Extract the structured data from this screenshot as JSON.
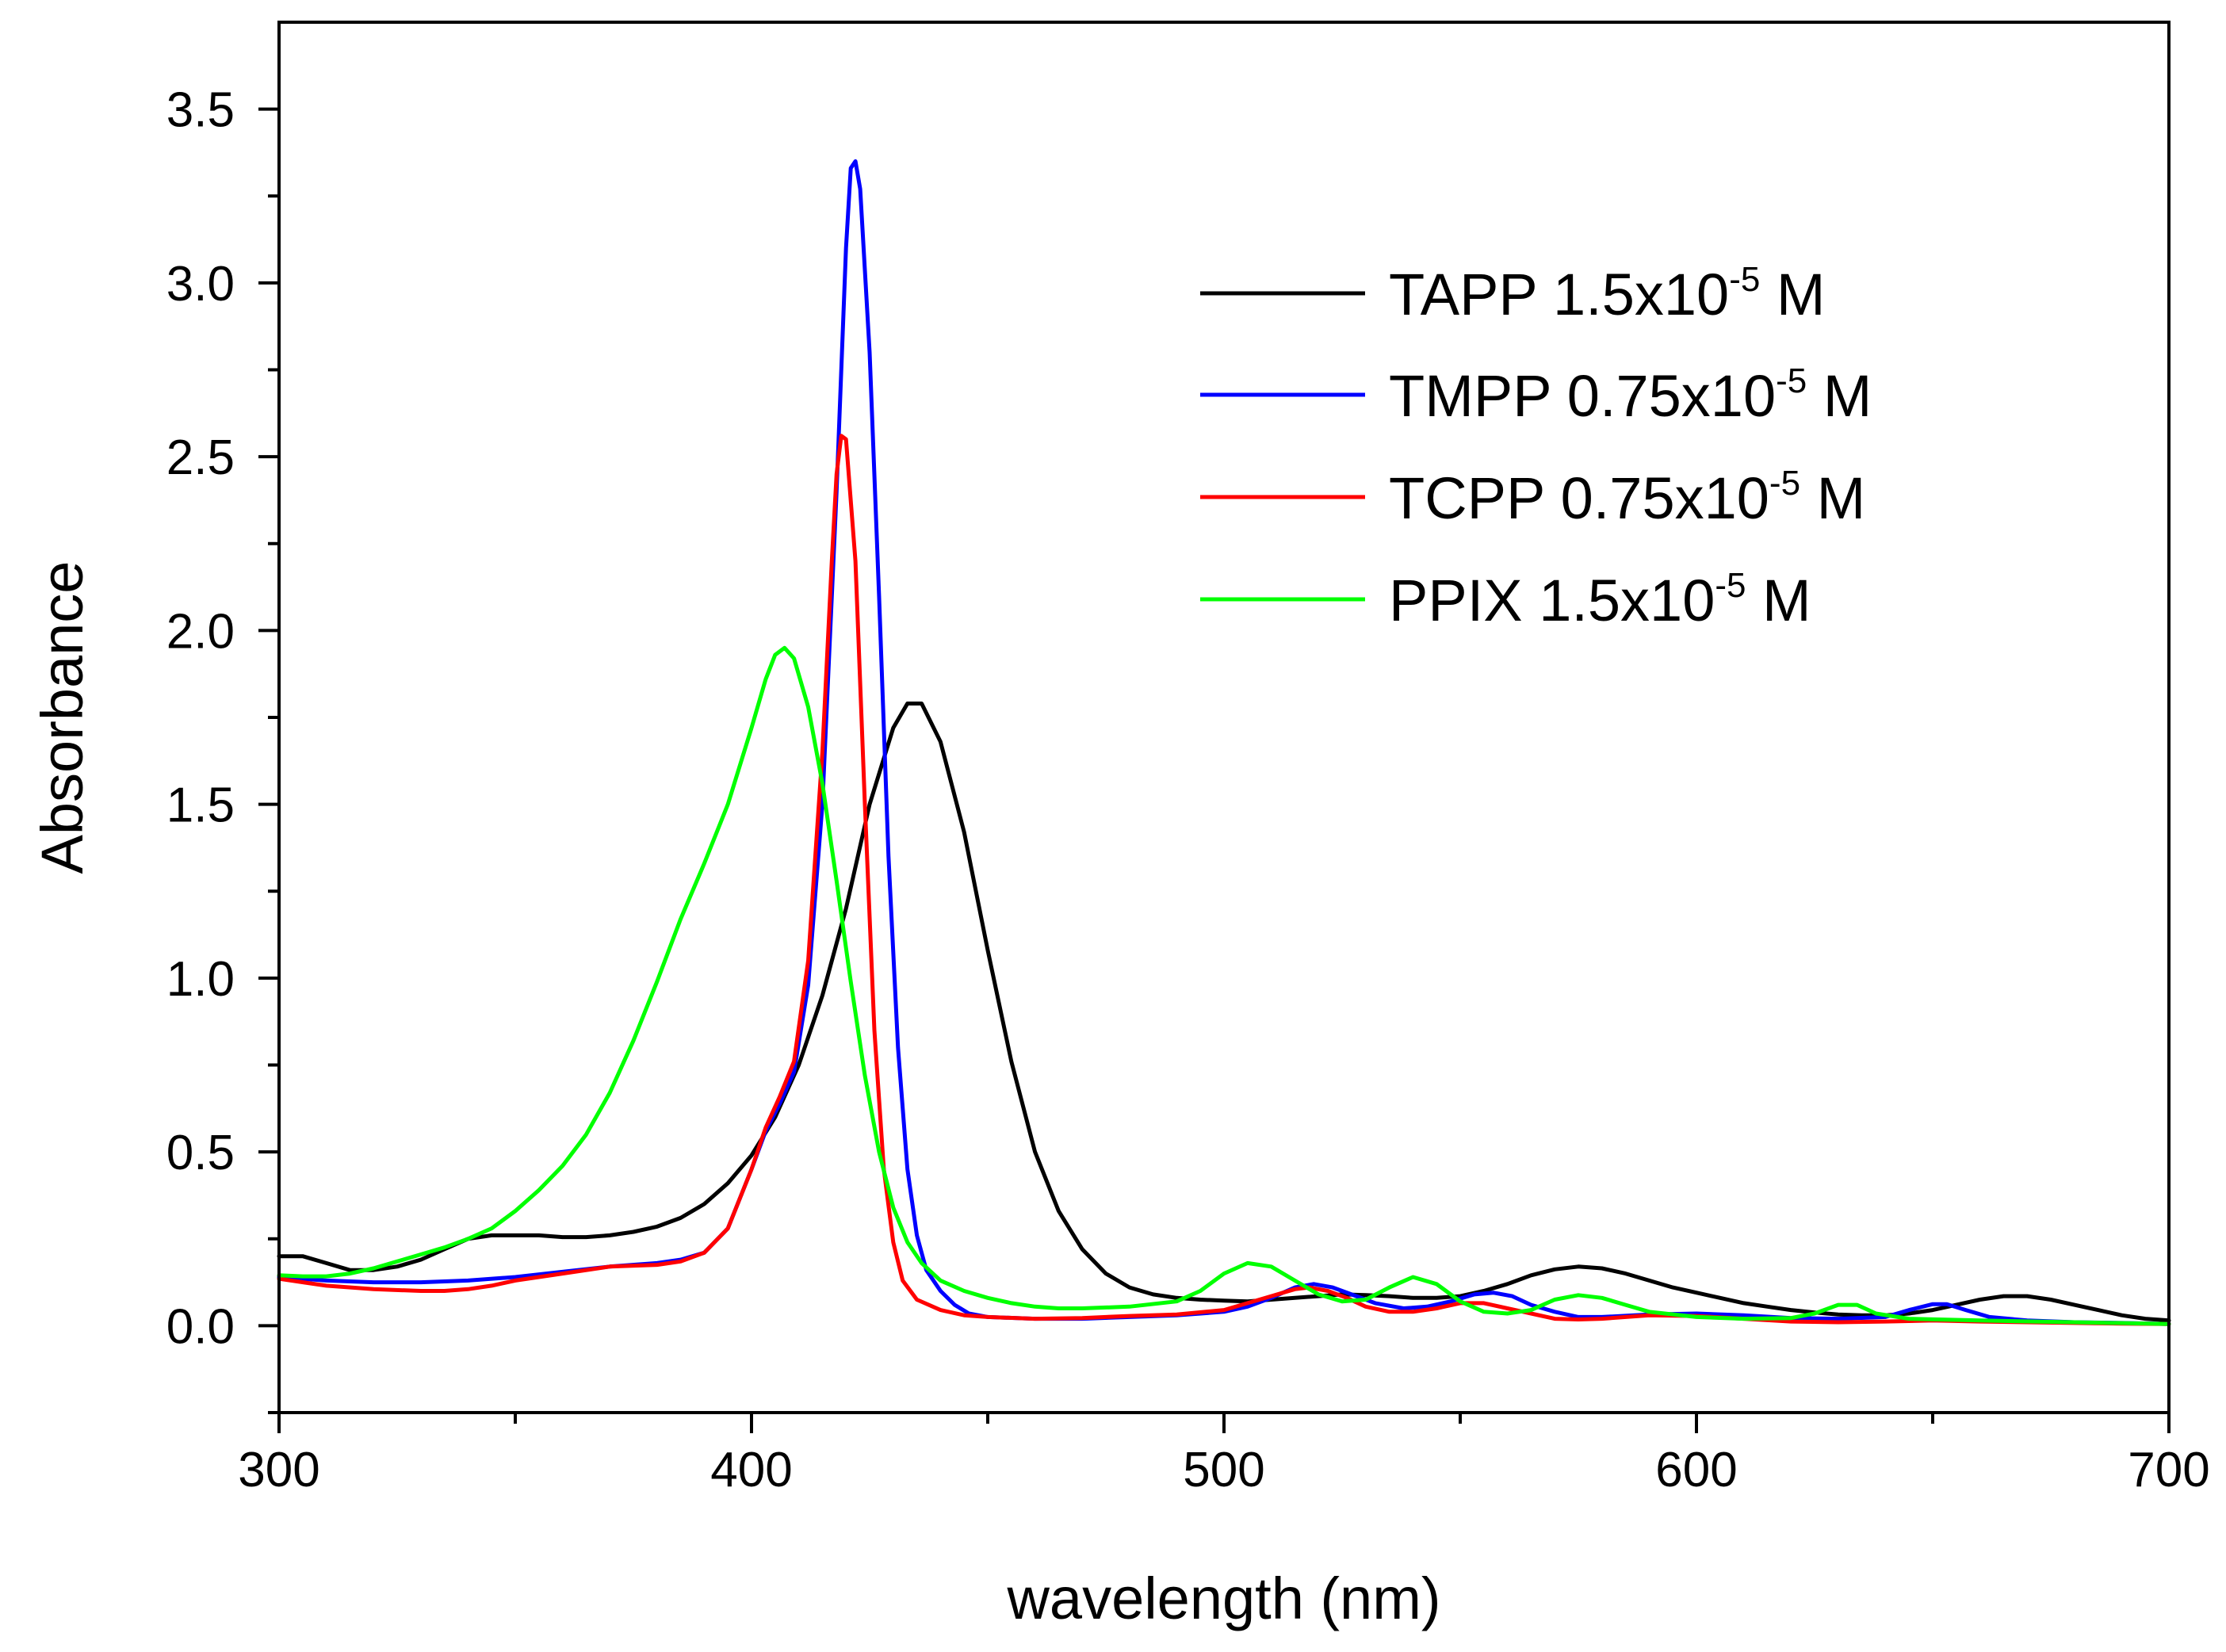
{
  "chart_data": {
    "type": "line",
    "title": "",
    "xlabel": "wavelength (nm)",
    "ylabel": "Absorbance",
    "xlim": [
      300,
      700
    ],
    "ylim": [
      -0.25,
      3.75
    ],
    "grid": false,
    "legend_position": "top-right",
    "x_ticks": [
      300,
      400,
      500,
      600,
      700
    ],
    "x_tick_labels": [
      "300",
      "400",
      "500",
      "600",
      "700"
    ],
    "y_ticks": [
      0.0,
      0.5,
      1.0,
      1.5,
      2.0,
      2.5,
      3.0,
      3.5
    ],
    "y_tick_labels": [
      "0.0",
      "0.5",
      "1.0",
      "1.5",
      "2.0",
      "2.5",
      "3.0",
      "3.5"
    ],
    "series": [
      {
        "name": "TAPP",
        "legend": {
          "pre": "TAPP 1.5x10",
          "sup": "-5",
          "post": " M"
        },
        "color": "#000000",
        "points": [
          [
            300,
            0.2
          ],
          [
            305,
            0.2
          ],
          [
            310,
            0.18
          ],
          [
            315,
            0.16
          ],
          [
            320,
            0.16
          ],
          [
            325,
            0.17
          ],
          [
            330,
            0.19
          ],
          [
            335,
            0.22
          ],
          [
            340,
            0.25
          ],
          [
            345,
            0.26
          ],
          [
            350,
            0.26
          ],
          [
            355,
            0.26
          ],
          [
            360,
            0.255
          ],
          [
            365,
            0.255
          ],
          [
            370,
            0.26
          ],
          [
            375,
            0.27
          ],
          [
            380,
            0.285
          ],
          [
            385,
            0.31
          ],
          [
            390,
            0.35
          ],
          [
            395,
            0.41
          ],
          [
            400,
            0.49
          ],
          [
            405,
            0.6
          ],
          [
            410,
            0.75
          ],
          [
            415,
            0.95
          ],
          [
            420,
            1.2
          ],
          [
            425,
            1.5
          ],
          [
            430,
            1.72
          ],
          [
            433,
            1.79
          ],
          [
            436,
            1.79
          ],
          [
            440,
            1.68
          ],
          [
            445,
            1.42
          ],
          [
            450,
            1.08
          ],
          [
            455,
            0.76
          ],
          [
            460,
            0.5
          ],
          [
            465,
            0.33
          ],
          [
            470,
            0.22
          ],
          [
            475,
            0.15
          ],
          [
            480,
            0.11
          ],
          [
            485,
            0.09
          ],
          [
            490,
            0.08
          ],
          [
            495,
            0.075
          ],
          [
            500,
            0.072
          ],
          [
            505,
            0.07
          ],
          [
            510,
            0.075
          ],
          [
            515,
            0.08
          ],
          [
            520,
            0.085
          ],
          [
            525,
            0.09
          ],
          [
            530,
            0.088
          ],
          [
            535,
            0.085
          ],
          [
            540,
            0.08
          ],
          [
            545,
            0.08
          ],
          [
            550,
            0.085
          ],
          [
            555,
            0.1
          ],
          [
            560,
            0.12
          ],
          [
            565,
            0.145
          ],
          [
            570,
            0.162
          ],
          [
            575,
            0.17
          ],
          [
            580,
            0.165
          ],
          [
            585,
            0.15
          ],
          [
            590,
            0.13
          ],
          [
            595,
            0.11
          ],
          [
            600,
            0.095
          ],
          [
            605,
            0.08
          ],
          [
            610,
            0.065
          ],
          [
            615,
            0.055
          ],
          [
            620,
            0.045
          ],
          [
            625,
            0.038
          ],
          [
            630,
            0.032
          ],
          [
            635,
            0.03
          ],
          [
            640,
            0.03
          ],
          [
            645,
            0.035
          ],
          [
            650,
            0.045
          ],
          [
            655,
            0.06
          ],
          [
            660,
            0.075
          ],
          [
            665,
            0.085
          ],
          [
            670,
            0.085
          ],
          [
            675,
            0.075
          ],
          [
            680,
            0.06
          ],
          [
            685,
            0.045
          ],
          [
            690,
            0.03
          ],
          [
            695,
            0.02
          ],
          [
            700,
            0.015
          ]
        ]
      },
      {
        "name": "TMPP",
        "legend": {
          "pre": "TMPP 0.75x10",
          "sup": "-5",
          "post": " M"
        },
        "color": "#0000ff",
        "points": [
          [
            300,
            0.14
          ],
          [
            310,
            0.13
          ],
          [
            320,
            0.125
          ],
          [
            330,
            0.125
          ],
          [
            340,
            0.13
          ],
          [
            350,
            0.14
          ],
          [
            360,
            0.155
          ],
          [
            370,
            0.17
          ],
          [
            380,
            0.18
          ],
          [
            385,
            0.19
          ],
          [
            390,
            0.21
          ],
          [
            395,
            0.28
          ],
          [
            400,
            0.45
          ],
          [
            403,
            0.56
          ],
          [
            406,
            0.64
          ],
          [
            409,
            0.73
          ],
          [
            412,
            0.98
          ],
          [
            415,
            1.5
          ],
          [
            418,
            2.4
          ],
          [
            420,
            3.1
          ],
          [
            421,
            3.33
          ],
          [
            422,
            3.35
          ],
          [
            423,
            3.27
          ],
          [
            425,
            2.8
          ],
          [
            427,
            2.1
          ],
          [
            429,
            1.35
          ],
          [
            431,
            0.8
          ],
          [
            433,
            0.45
          ],
          [
            435,
            0.26
          ],
          [
            437,
            0.16
          ],
          [
            440,
            0.1
          ],
          [
            443,
            0.06
          ],
          [
            446,
            0.035
          ],
          [
            450,
            0.025
          ],
          [
            460,
            0.02
          ],
          [
            470,
            0.02
          ],
          [
            480,
            0.025
          ],
          [
            490,
            0.03
          ],
          [
            500,
            0.04
          ],
          [
            505,
            0.055
          ],
          [
            510,
            0.08
          ],
          [
            515,
            0.11
          ],
          [
            519,
            0.12
          ],
          [
            523,
            0.11
          ],
          [
            527,
            0.09
          ],
          [
            532,
            0.065
          ],
          [
            538,
            0.05
          ],
          [
            543,
            0.055
          ],
          [
            548,
            0.07
          ],
          [
            553,
            0.09
          ],
          [
            557,
            0.095
          ],
          [
            561,
            0.085
          ],
          [
            565,
            0.06
          ],
          [
            570,
            0.04
          ],
          [
            575,
            0.025
          ],
          [
            580,
            0.025
          ],
          [
            590,
            0.032
          ],
          [
            600,
            0.035
          ],
          [
            610,
            0.03
          ],
          [
            620,
            0.022
          ],
          [
            630,
            0.02
          ],
          [
            640,
            0.025
          ],
          [
            645,
            0.045
          ],
          [
            650,
            0.062
          ],
          [
            653,
            0.062
          ],
          [
            657,
            0.045
          ],
          [
            662,
            0.025
          ],
          [
            670,
            0.015
          ],
          [
            680,
            0.01
          ],
          [
            690,
            0.008
          ],
          [
            700,
            0.005
          ]
        ]
      },
      {
        "name": "TCPP",
        "legend": {
          "pre": "TCPP 0.75x10",
          "sup": "-5",
          "post": " M"
        },
        "color": "#ff0000",
        "points": [
          [
            300,
            0.135
          ],
          [
            310,
            0.115
          ],
          [
            320,
            0.105
          ],
          [
            330,
            0.1
          ],
          [
            335,
            0.1
          ],
          [
            340,
            0.105
          ],
          [
            345,
            0.115
          ],
          [
            350,
            0.13
          ],
          [
            360,
            0.15
          ],
          [
            370,
            0.17
          ],
          [
            380,
            0.175
          ],
          [
            385,
            0.185
          ],
          [
            390,
            0.21
          ],
          [
            395,
            0.28
          ],
          [
            400,
            0.45
          ],
          [
            403,
            0.57
          ],
          [
            406,
            0.66
          ],
          [
            409,
            0.76
          ],
          [
            412,
            1.05
          ],
          [
            415,
            1.65
          ],
          [
            417,
            2.2
          ],
          [
            418,
            2.45
          ],
          [
            419,
            2.56
          ],
          [
            420,
            2.55
          ],
          [
            422,
            2.2
          ],
          [
            424,
            1.5
          ],
          [
            426,
            0.85
          ],
          [
            428,
            0.45
          ],
          [
            430,
            0.24
          ],
          [
            432,
            0.13
          ],
          [
            435,
            0.075
          ],
          [
            440,
            0.045
          ],
          [
            445,
            0.03
          ],
          [
            450,
            0.025
          ],
          [
            460,
            0.02
          ],
          [
            470,
            0.022
          ],
          [
            480,
            0.028
          ],
          [
            490,
            0.032
          ],
          [
            500,
            0.045
          ],
          [
            505,
            0.065
          ],
          [
            510,
            0.085
          ],
          [
            515,
            0.105
          ],
          [
            518,
            0.11
          ],
          [
            522,
            0.1
          ],
          [
            526,
            0.08
          ],
          [
            530,
            0.055
          ],
          [
            535,
            0.04
          ],
          [
            540,
            0.04
          ],
          [
            545,
            0.05
          ],
          [
            550,
            0.065
          ],
          [
            555,
            0.065
          ],
          [
            560,
            0.05
          ],
          [
            565,
            0.035
          ],
          [
            570,
            0.02
          ],
          [
            575,
            0.018
          ],
          [
            580,
            0.02
          ],
          [
            590,
            0.03
          ],
          [
            600,
            0.028
          ],
          [
            610,
            0.02
          ],
          [
            620,
            0.012
          ],
          [
            630,
            0.01
          ],
          [
            640,
            0.012
          ],
          [
            650,
            0.015
          ],
          [
            660,
            0.012
          ],
          [
            670,
            0.01
          ],
          [
            680,
            0.008
          ],
          [
            690,
            0.006
          ],
          [
            700,
            0.005
          ]
        ]
      },
      {
        "name": "PPIX",
        "legend": {
          "pre": "PPIX  1.5x10",
          "sup": "-5",
          "post": " M"
        },
        "color": "#00ff00",
        "points": [
          [
            300,
            0.145
          ],
          [
            305,
            0.142
          ],
          [
            310,
            0.142
          ],
          [
            315,
            0.15
          ],
          [
            320,
            0.165
          ],
          [
            325,
            0.185
          ],
          [
            330,
            0.205
          ],
          [
            335,
            0.225
          ],
          [
            340,
            0.25
          ],
          [
            345,
            0.28
          ],
          [
            350,
            0.33
          ],
          [
            355,
            0.39
          ],
          [
            360,
            0.46
          ],
          [
            365,
            0.55
          ],
          [
            370,
            0.67
          ],
          [
            375,
            0.82
          ],
          [
            380,
            0.99
          ],
          [
            385,
            1.17
          ],
          [
            390,
            1.33
          ],
          [
            395,
            1.5
          ],
          [
            400,
            1.72
          ],
          [
            403,
            1.86
          ],
          [
            405,
            1.93
          ],
          [
            407,
            1.95
          ],
          [
            409,
            1.92
          ],
          [
            412,
            1.78
          ],
          [
            415,
            1.56
          ],
          [
            418,
            1.28
          ],
          [
            421,
            0.99
          ],
          [
            424,
            0.72
          ],
          [
            427,
            0.5
          ],
          [
            430,
            0.34
          ],
          [
            433,
            0.24
          ],
          [
            436,
            0.18
          ],
          [
            440,
            0.13
          ],
          [
            445,
            0.1
          ],
          [
            450,
            0.08
          ],
          [
            455,
            0.065
          ],
          [
            460,
            0.055
          ],
          [
            465,
            0.05
          ],
          [
            470,
            0.05
          ],
          [
            480,
            0.055
          ],
          [
            490,
            0.07
          ],
          [
            495,
            0.1
          ],
          [
            500,
            0.15
          ],
          [
            505,
            0.18
          ],
          [
            510,
            0.17
          ],
          [
            515,
            0.13
          ],
          [
            520,
            0.09
          ],
          [
            525,
            0.07
          ],
          [
            530,
            0.075
          ],
          [
            535,
            0.11
          ],
          [
            540,
            0.14
          ],
          [
            545,
            0.12
          ],
          [
            550,
            0.07
          ],
          [
            555,
            0.04
          ],
          [
            560,
            0.035
          ],
          [
            565,
            0.045
          ],
          [
            570,
            0.075
          ],
          [
            575,
            0.088
          ],
          [
            580,
            0.08
          ],
          [
            585,
            0.06
          ],
          [
            590,
            0.04
          ],
          [
            600,
            0.025
          ],
          [
            610,
            0.02
          ],
          [
            620,
            0.022
          ],
          [
            625,
            0.035
          ],
          [
            630,
            0.06
          ],
          [
            634,
            0.06
          ],
          [
            638,
            0.035
          ],
          [
            645,
            0.02
          ],
          [
            660,
            0.015
          ],
          [
            680,
            0.01
          ],
          [
            700,
            0.005
          ]
        ]
      }
    ]
  }
}
